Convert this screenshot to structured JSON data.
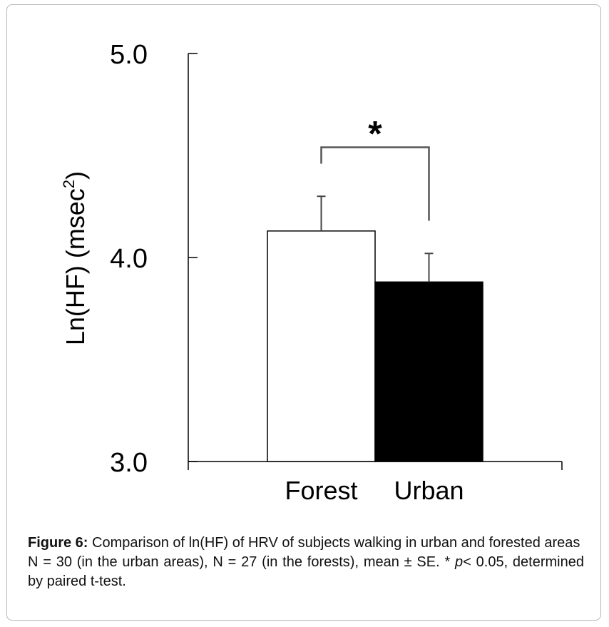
{
  "chart_data": {
    "type": "bar",
    "categories": [
      "Forest",
      "Urban"
    ],
    "values": [
      4.13,
      3.88
    ],
    "errors": [
      0.17,
      0.14
    ],
    "colors": [
      "#ffffff",
      "#000000"
    ],
    "edge_color": "#000000",
    "ylabel_main": "Ln(HF) (msec",
    "ylabel_sup": "2",
    "ylabel_close": ")",
    "ylim": [
      3.0,
      5.0
    ],
    "yticks": [
      3.0,
      4.0,
      5.0
    ],
    "ytick_labels": [
      "3.0",
      "4.0",
      "5.0"
    ],
    "grid": false,
    "significance": {
      "between": [
        "Forest",
        "Urban"
      ],
      "marker": "*"
    }
  },
  "caption": {
    "label": "Figure 6:",
    "title": " Comparison of ln(HF) of HRV of subjects walking in urban and forested areas",
    "note_before": "N = 30 (in the urban areas), N = 27 (in the forests), mean ± SE. * ",
    "note_p": "p",
    "note_after": "< 0.05, determined by paired t-test."
  }
}
